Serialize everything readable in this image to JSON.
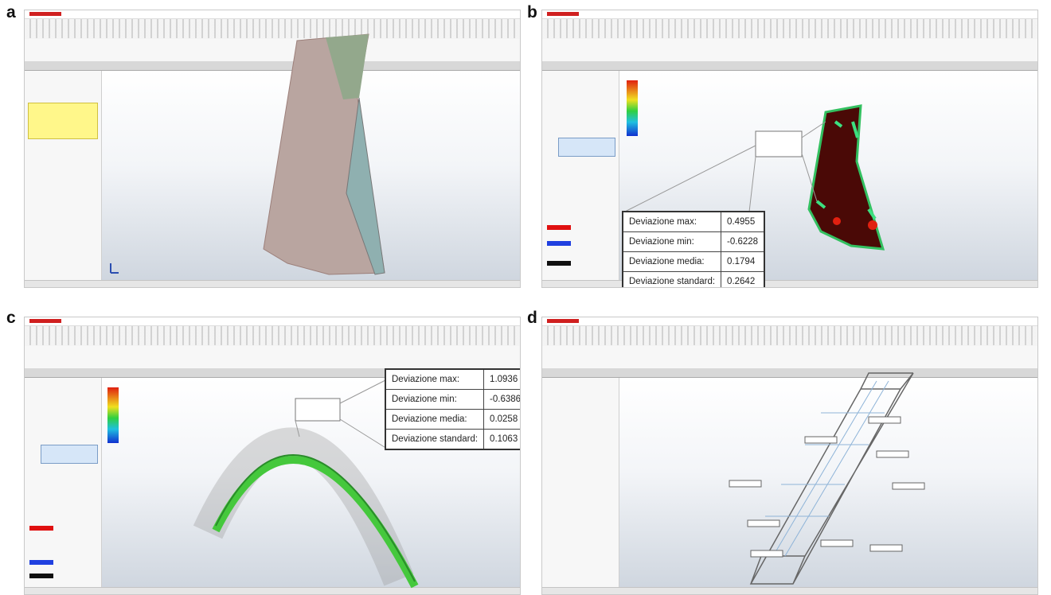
{
  "panels": [
    {
      "label": "a"
    },
    {
      "label": "b",
      "deviation_table": {
        "rows": [
          [
            "Deviazione max:",
            "0.4955"
          ],
          [
            "Deviazione min:",
            "-0.6228"
          ],
          [
            "Deviazione media:",
            "0.1794"
          ],
          [
            "Deviazione standard:",
            "0.2642"
          ]
        ]
      }
    },
    {
      "label": "c",
      "deviation_table": {
        "rows": [
          [
            "Deviazione max:",
            "1.0936"
          ],
          [
            "Deviazione min:",
            "-0.6386"
          ],
          [
            "Deviazione media:",
            "0.0258"
          ],
          [
            "Deviazione standard:",
            "0.1063"
          ]
        ]
      }
    },
    {
      "label": "d"
    }
  ]
}
